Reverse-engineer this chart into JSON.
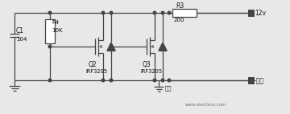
{
  "bg_color": "#e8e8e8",
  "line_color": "#444444",
  "text_color": "#111111",
  "watermark": "www.elecfans.com",
  "labels": {
    "C1": "C1",
    "C1_val": "104",
    "R4": "R4",
    "R4_val": "10K",
    "R3": "R3",
    "R3_val": "200",
    "Q2": "Q2",
    "Q2_model": "IRF3205",
    "Q3": "Q3",
    "Q3_model": "IRF3205",
    "v12": "12v",
    "output": "-输出",
    "power": "电源"
  }
}
